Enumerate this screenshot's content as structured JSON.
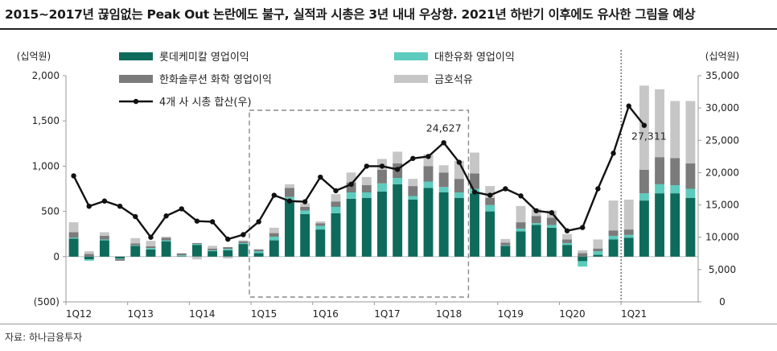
{
  "title": "2015~2017년 끊임없는 Peak Out 논란에도 불구, 실적과 시총은 3년 내내 우상향. 2021년 하반기 이후에도 유사한 그림을 예상",
  "source": "자료: 하나금융투자",
  "chart_data": {
    "type": "bar",
    "stacked": true,
    "left_unit": "(십억원)",
    "right_unit": "(십억원)",
    "left_axis": {
      "ylim": [
        -500,
        2000
      ],
      "ticks": [
        -500,
        0,
        500,
        1000,
        1500,
        2000
      ],
      "tick_labels": [
        "(500)",
        "0",
        "500",
        "1,000",
        "1,500",
        "2,000"
      ]
    },
    "right_axis": {
      "ylim": [
        0,
        35000
      ],
      "ticks": [
        0,
        5000,
        10000,
        15000,
        20000,
        25000,
        30000,
        35000
      ],
      "tick_labels": [
        "0",
        "5,000",
        "10,000",
        "15,000",
        "20,000",
        "25,000",
        "30,000",
        "35,000"
      ]
    },
    "x_tick_labels": [
      {
        "index": 0,
        "label": "1Q12"
      },
      {
        "index": 4,
        "label": "1Q13"
      },
      {
        "index": 8,
        "label": "1Q14"
      },
      {
        "index": 12,
        "label": "1Q15"
      },
      {
        "index": 16,
        "label": "1Q16"
      },
      {
        "index": 20,
        "label": "1Q17"
      },
      {
        "index": 24,
        "label": "1Q18"
      },
      {
        "index": 28,
        "label": "1Q19"
      },
      {
        "index": 32,
        "label": "1Q20"
      },
      {
        "index": 36,
        "label": "1Q21"
      }
    ],
    "legend": [
      "롯데케미칼 영업이익",
      "대한유화 영업이익",
      "한화솔루션 화학 영업이익",
      "금호석유",
      "4개 사 시총 합산(우)"
    ],
    "series": [
      {
        "name": "롯데케미칼 영업이익",
        "color": "#0e6b5c",
        "axis": "left",
        "values": [
          200,
          -30,
          180,
          -20,
          120,
          80,
          170,
          5,
          130,
          60,
          70,
          140,
          40,
          180,
          620,
          470,
          300,
          480,
          640,
          650,
          720,
          800,
          630,
          760,
          710,
          650,
          700,
          500,
          120,
          280,
          350,
          320,
          130,
          -50,
          20,
          190,
          210,
          620,
          700,
          700,
          650
        ]
      },
      {
        "name": "대한유화 영업이익",
        "color": "#5dcbbd",
        "axis": "left",
        "values": [
          10,
          -15,
          10,
          -5,
          5,
          15,
          10,
          10,
          10,
          10,
          15,
          10,
          20,
          40,
          40,
          40,
          40,
          70,
          70,
          60,
          90,
          70,
          40,
          70,
          60,
          60,
          50,
          70,
          5,
          30,
          20,
          30,
          20,
          -60,
          40,
          40,
          30,
          80,
          100,
          90,
          100
        ]
      },
      {
        "name": "한화솔루션 화학 영업이익",
        "color": "#7b7b7b",
        "axis": "left",
        "values": [
          60,
          30,
          40,
          -20,
          20,
          20,
          30,
          20,
          10,
          20,
          20,
          20,
          20,
          40,
          100,
          40,
          30,
          60,
          110,
          80,
          150,
          160,
          110,
          170,
          160,
          150,
          170,
          80,
          30,
          70,
          80,
          80,
          40,
          40,
          30,
          60,
          60,
          260,
          300,
          300,
          280
        ]
      },
      {
        "name": "금호석유",
        "color": "#c6c6c6",
        "axis": "left",
        "values": [
          110,
          30,
          40,
          0,
          60,
          60,
          10,
          5,
          -30,
          30,
          -20,
          10,
          0,
          60,
          40,
          40,
          20,
          80,
          110,
          90,
          120,
          130,
          80,
          130,
          80,
          200,
          230,
          130,
          40,
          180,
          80,
          80,
          60,
          30,
          100,
          330,
          330,
          930,
          750,
          630,
          690
        ]
      },
      {
        "name": "4개 사 시총 합산(우)",
        "color": "#111111",
        "axis": "right",
        "type": "line",
        "values": [
          19500,
          14800,
          15600,
          14800,
          13200,
          10000,
          13300,
          14400,
          12500,
          12400,
          9700,
          10400,
          12400,
          16500,
          15600,
          15500,
          19300,
          17200,
          18200,
          21000,
          21000,
          20500,
          22200,
          22500,
          24627,
          21600,
          17000,
          16500,
          17500,
          16400,
          14100,
          13800,
          11000,
          11500,
          17500,
          23000,
          30300,
          27311
        ]
      }
    ],
    "annotations": [
      {
        "index": 24,
        "label": "24,627",
        "series": "4개 사 시총 합산(우)"
      },
      {
        "index": 37,
        "label": "27,311",
        "series": "4개 사 시총 합산(우)"
      }
    ],
    "highlight_box": {
      "from_index": 12,
      "to_index": 25
    },
    "divider_at_index": 35.5
  }
}
